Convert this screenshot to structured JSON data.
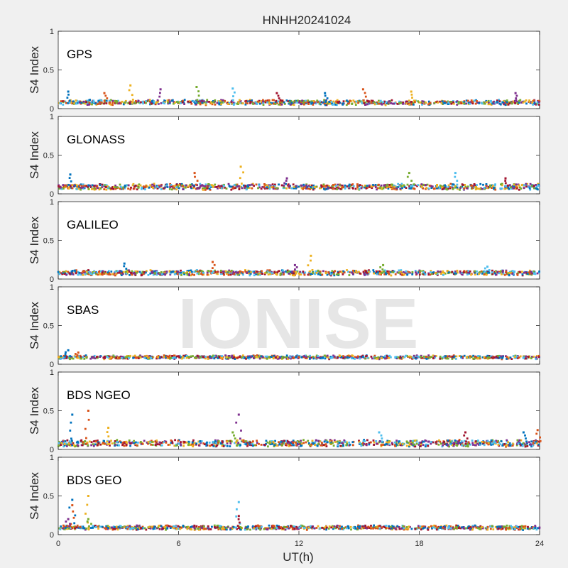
{
  "figure": {
    "title": "HNHH20241024",
    "watermark": "IONISE",
    "xlabel": "UT(h)"
  },
  "chart_data": {
    "type": "scatter",
    "title": "HNHH20241024",
    "xlabel": "UT(h)",
    "ylabel": "S4 Index",
    "xlim": [
      0,
      24
    ],
    "ylim": [
      0,
      1
    ],
    "xticks": [
      0,
      6,
      12,
      18,
      24
    ],
    "yticks": [
      0,
      0.5,
      1
    ],
    "grid": false,
    "series_colors": [
      "#0072BD",
      "#D95319",
      "#EDB120",
      "#7E2F8E",
      "#77AC30",
      "#4DBEEE",
      "#A2142F"
    ],
    "panels": [
      {
        "label": "GPS",
        "baseline": 0.08,
        "spread": 0.025,
        "spikes": [
          {
            "x": 0.5,
            "y": 0.22
          },
          {
            "x": 2.3,
            "y": 0.2
          },
          {
            "x": 3.6,
            "y": 0.3
          },
          {
            "x": 5.1,
            "y": 0.25
          },
          {
            "x": 6.9,
            "y": 0.28
          },
          {
            "x": 8.7,
            "y": 0.26
          },
          {
            "x": 10.9,
            "y": 0.2
          },
          {
            "x": 13.3,
            "y": 0.2
          },
          {
            "x": 15.2,
            "y": 0.25
          },
          {
            "x": 17.6,
            "y": 0.22
          },
          {
            "x": 22.8,
            "y": 0.2
          }
        ]
      },
      {
        "label": "GLONASS",
        "baseline": 0.09,
        "spread": 0.03,
        "spikes": [
          {
            "x": 0.6,
            "y": 0.25
          },
          {
            "x": 6.8,
            "y": 0.27
          },
          {
            "x": 9.1,
            "y": 0.35
          },
          {
            "x": 11.4,
            "y": 0.2
          },
          {
            "x": 17.5,
            "y": 0.27
          },
          {
            "x": 19.8,
            "y": 0.27
          },
          {
            "x": 22.3,
            "y": 0.2
          }
        ]
      },
      {
        "label": "GALILEO",
        "baseline": 0.08,
        "spread": 0.025,
        "spikes": [
          {
            "x": 3.3,
            "y": 0.2
          },
          {
            "x": 7.7,
            "y": 0.22
          },
          {
            "x": 12.6,
            "y": 0.3
          },
          {
            "x": 11.8,
            "y": 0.18
          },
          {
            "x": 16.2,
            "y": 0.18
          },
          {
            "x": 21.4,
            "y": 0.16
          }
        ]
      },
      {
        "label": "SBAS",
        "baseline": 0.09,
        "spread": 0.015,
        "spikes": [
          {
            "x": 0.5,
            "y": 0.18
          },
          {
            "x": 1.0,
            "y": 0.15
          }
        ]
      },
      {
        "label": "BDS NGEO",
        "baseline": 0.08,
        "spread": 0.035,
        "spikes": [
          {
            "x": 0.7,
            "y": 0.45
          },
          {
            "x": 1.5,
            "y": 0.5
          },
          {
            "x": 2.5,
            "y": 0.28
          },
          {
            "x": 9.0,
            "y": 0.45
          },
          {
            "x": 8.7,
            "y": 0.22
          },
          {
            "x": 16.0,
            "y": 0.22
          },
          {
            "x": 20.3,
            "y": 0.22
          },
          {
            "x": 23.2,
            "y": 0.22
          },
          {
            "x": 23.9,
            "y": 0.25
          }
        ]
      },
      {
        "label": "BDS GEO",
        "baseline": 0.09,
        "spread": 0.02,
        "spikes": [
          {
            "x": 0.7,
            "y": 0.45
          },
          {
            "x": 0.7,
            "y": 0.38
          },
          {
            "x": 1.5,
            "y": 0.5
          },
          {
            "x": 0.5,
            "y": 0.2
          },
          {
            "x": 1.5,
            "y": 0.2
          },
          {
            "x": 9.0,
            "y": 0.42
          },
          {
            "x": 9.0,
            "y": 0.24
          }
        ]
      }
    ]
  }
}
